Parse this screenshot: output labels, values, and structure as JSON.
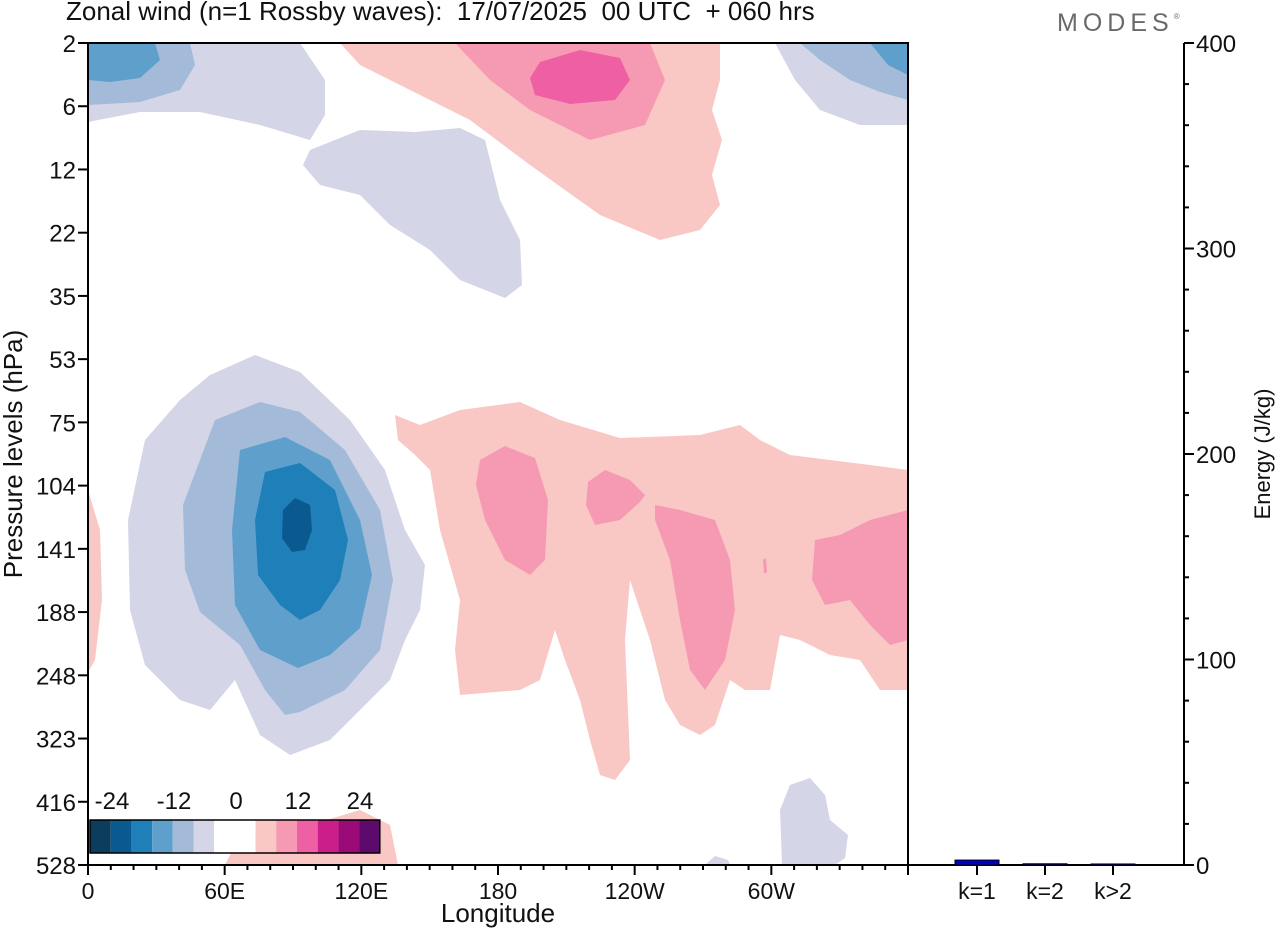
{
  "header": {
    "title": "Zonal wind (n=1 Rossby waves):  17/07/2025  00 UTC  + 060 hrs",
    "logo": "MODES",
    "logo_mark": "®"
  },
  "chart_data": [
    {
      "type": "heatmap",
      "title": "Zonal wind (n=1 Rossby waves):  17/07/2025  00 UTC  + 060 hrs",
      "xlabel": "Longitude",
      "ylabel": "Pressure levels (hPa)",
      "x_ticks": [
        "0",
        "60E",
        "120E",
        "180",
        "120W",
        "60W"
      ],
      "x_range_deg": [
        0,
        360
      ],
      "y_ticks": [
        "2",
        "6",
        "12",
        "22",
        "35",
        "53",
        "75",
        "104",
        "141",
        "188",
        "248",
        "323",
        "416",
        "528"
      ],
      "colorbar": {
        "labels": [
          "-24",
          "-12",
          "0",
          "12",
          "24"
        ],
        "colors": [
          "#0d3d5c",
          "#0a5a8f",
          "#1f7fb8",
          "#5f9fcc",
          "#a3bbd9",
          "#d4d5e6",
          "#ffffff",
          "#ffffff",
          "#f9c8c4",
          "#f69ab3",
          "#ef5fa3",
          "#cb1e8a",
          "#9b0b78",
          "#5c0a6b"
        ]
      },
      "features": [
        {
          "sign": "negative",
          "peak": -20,
          "lon": 90,
          "level_hpa": 141
        },
        {
          "sign": "negative",
          "peak": -4,
          "lon": 150,
          "level_hpa": 22
        },
        {
          "sign": "negative",
          "peak": -8,
          "lon": 15,
          "level_hpa": 2
        },
        {
          "sign": "negative",
          "peak": -8,
          "lon": 350,
          "level_hpa": 2
        },
        {
          "sign": "negative",
          "peak": -4,
          "lon": 320,
          "level_hpa": 528
        },
        {
          "sign": "positive",
          "peak": 12,
          "lon": 225,
          "level_hpa": 4
        },
        {
          "sign": "positive",
          "peak": 8,
          "lon": 190,
          "level_hpa": 141
        },
        {
          "sign": "positive",
          "peak": 8,
          "lon": 270,
          "level_hpa": 141
        },
        {
          "sign": "positive",
          "peak": 8,
          "lon": 345,
          "level_hpa": 141
        },
        {
          "sign": "positive",
          "peak": 4,
          "lon": 135,
          "level_hpa": 528
        }
      ]
    },
    {
      "type": "bar",
      "ylabel": "Energy (J/kg)",
      "categories": [
        "k=1",
        "k=2",
        "k>2"
      ],
      "values": [
        2.4,
        0.6,
        0.5
      ],
      "ylim": [
        0,
        400
      ],
      "y_ticks": [
        "0",
        "100",
        "200",
        "300",
        "400"
      ],
      "colors": [
        "#0000cc",
        "#000066",
        "#000066"
      ]
    }
  ]
}
